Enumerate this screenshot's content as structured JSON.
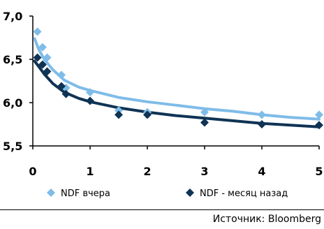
{
  "chart_data": {
    "type": "scatter",
    "title": "",
    "xlabel": "",
    "ylabel": "",
    "xlim": [
      0,
      5
    ],
    "ylim": [
      5.5,
      7.0
    ],
    "xticks": [
      "0",
      "1",
      "2",
      "3",
      "4",
      "5"
    ],
    "yticks": [
      "5,5",
      "6,0",
      "6,5",
      "7,0"
    ],
    "grid": false,
    "legend_position": "bottom",
    "series": [
      {
        "name": "NDF вчера",
        "color": "#7fbce8",
        "marker": "diamond",
        "points": [
          [
            0.08,
            6.82
          ],
          [
            0.17,
            6.64
          ],
          [
            0.25,
            6.52
          ],
          [
            0.5,
            6.32
          ],
          [
            0.58,
            6.17
          ],
          [
            1.0,
            6.12
          ],
          [
            1.5,
            5.91
          ],
          [
            2.0,
            5.89
          ],
          [
            3.0,
            5.89
          ],
          [
            4.0,
            5.86
          ],
          [
            5.0,
            5.86
          ]
        ],
        "trend": [
          [
            0.03,
            6.74
          ],
          [
            0.1,
            6.62
          ],
          [
            0.2,
            6.5
          ],
          [
            0.35,
            6.38
          ],
          [
            0.55,
            6.26
          ],
          [
            0.8,
            6.18
          ],
          [
            1.0,
            6.14
          ],
          [
            1.5,
            6.06
          ],
          [
            2.0,
            6.01
          ],
          [
            2.5,
            5.97
          ],
          [
            3.0,
            5.93
          ],
          [
            3.5,
            5.9
          ],
          [
            4.0,
            5.86
          ],
          [
            4.5,
            5.83
          ],
          [
            5.0,
            5.81
          ]
        ]
      },
      {
        "name": "NDF - месяц назад",
        "color": "#0f3354",
        "marker": "diamond",
        "points": [
          [
            0.08,
            6.52
          ],
          [
            0.17,
            6.44
          ],
          [
            0.25,
            6.36
          ],
          [
            0.5,
            6.19
          ],
          [
            0.58,
            6.1
          ],
          [
            1.0,
            6.02
          ],
          [
            1.5,
            5.86
          ],
          [
            2.0,
            5.86
          ],
          [
            3.0,
            5.77
          ],
          [
            4.0,
            5.75
          ],
          [
            5.0,
            5.74
          ]
        ],
        "trend": [
          [
            0.03,
            6.48
          ],
          [
            0.1,
            6.42
          ],
          [
            0.2,
            6.33
          ],
          [
            0.35,
            6.22
          ],
          [
            0.55,
            6.12
          ],
          [
            0.8,
            6.05
          ],
          [
            1.0,
            6.01
          ],
          [
            1.5,
            5.94
          ],
          [
            2.0,
            5.89
          ],
          [
            2.5,
            5.85
          ],
          [
            3.0,
            5.82
          ],
          [
            3.5,
            5.79
          ],
          [
            4.0,
            5.76
          ],
          [
            4.5,
            5.74
          ],
          [
            5.0,
            5.72
          ]
        ]
      }
    ]
  },
  "source": "Источник: Bloomberg"
}
